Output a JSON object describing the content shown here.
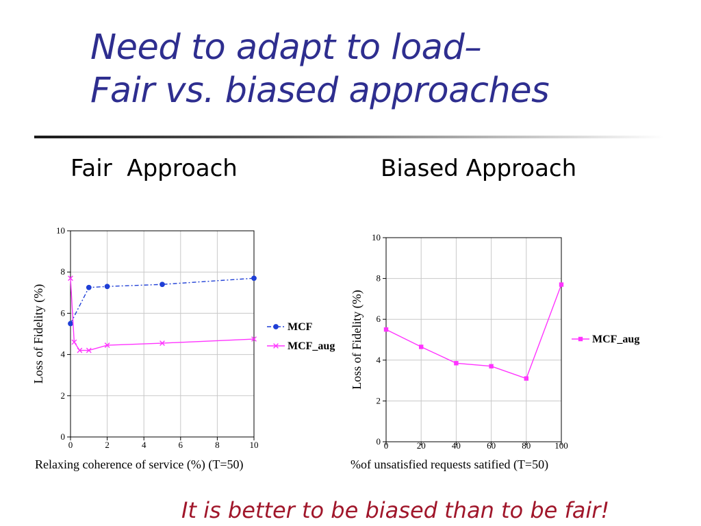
{
  "slide": {
    "title_line1": "Need to adapt to load–",
    "title_line2": "Fair vs. biased approaches",
    "left_heading": "Fair  Approach",
    "right_heading": "Biased Approach",
    "conclusion": "It is better to be biased than to be fair!"
  },
  "chart_data": [
    {
      "type": "line",
      "title": "",
      "xlabel": "Relaxing coherence of service (%) (T=50)",
      "ylabel": "Loss of Fidelity (%)",
      "xlim": [
        0,
        10
      ],
      "ylim": [
        0,
        10
      ],
      "xticks": [
        0,
        2,
        4,
        6,
        8,
        10
      ],
      "yticks": [
        0,
        2,
        4,
        6,
        8,
        10
      ],
      "grid": true,
      "legend_position": "right",
      "series": [
        {
          "name": "MCF",
          "color": "#1f3fd6",
          "marker": "circle",
          "dash": "dash-dot",
          "x": [
            0,
            1,
            2,
            5,
            10
          ],
          "y": [
            5.5,
            7.25,
            7.3,
            7.4,
            7.7
          ]
        },
        {
          "name": "MCF_aug",
          "color": "#ff33ff",
          "marker": "x",
          "dash": "solid",
          "x": [
            0,
            0.2,
            0.5,
            1,
            2,
            5,
            10
          ],
          "y": [
            7.7,
            4.6,
            4.2,
            4.2,
            4.45,
            4.55,
            4.75
          ]
        }
      ]
    },
    {
      "type": "line",
      "title": "",
      "xlabel": "%of unsatisfied requests satified (T=50)",
      "ylabel": "Loss of Fidelity (%)",
      "xlim": [
        0,
        100
      ],
      "ylim": [
        0,
        10
      ],
      "xticks": [
        0,
        20,
        40,
        60,
        80,
        100
      ],
      "yticks": [
        0,
        2,
        4,
        6,
        8,
        10
      ],
      "grid": true,
      "legend_position": "right",
      "series": [
        {
          "name": "MCF_aug",
          "color": "#ff33ff",
          "marker": "square",
          "dash": "solid",
          "x": [
            0,
            20,
            40,
            60,
            80,
            100
          ],
          "y": [
            5.5,
            4.65,
            3.85,
            3.7,
            3.1,
            7.7
          ]
        }
      ]
    }
  ]
}
